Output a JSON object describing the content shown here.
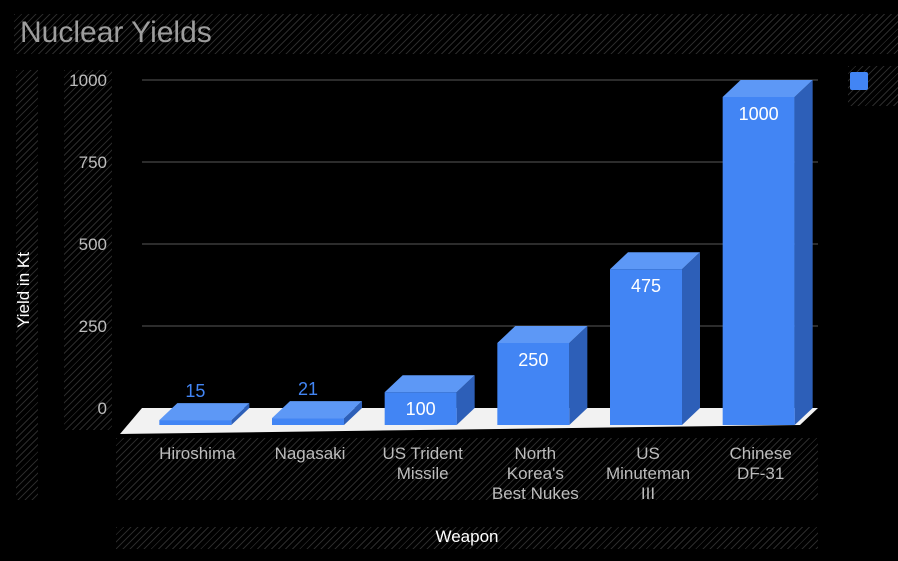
{
  "chart_data": {
    "type": "bar",
    "style": "3d-column",
    "title": "Nuclear Yields",
    "xlabel": "Weapon",
    "ylabel": "Yield in Kt",
    "categories": [
      [
        "Hiroshima"
      ],
      [
        "Nagasaki"
      ],
      [
        "US Trident",
        "Missile"
      ],
      [
        "North",
        "Korea's",
        "Best Nukes"
      ],
      [
        "US",
        "Minuteman",
        "III"
      ],
      [
        "Chinese",
        "DF-31"
      ]
    ],
    "values": [
      15,
      21,
      100,
      250,
      475,
      1000
    ],
    "data_labels": [
      "15",
      "21",
      "100",
      "250",
      "475",
      "1000"
    ],
    "ylim": [
      0,
      1000
    ],
    "yticks": [
      "0",
      "250",
      "500",
      "750",
      "1000"
    ],
    "grid": true,
    "legend": {
      "placement": "top-right",
      "entries": [
        ""
      ]
    },
    "colors": {
      "bar_front": "#4285f4",
      "bar_top": "#5d98f6",
      "bar_side": "#2d5fb8",
      "floor": "#f2f2f2",
      "grid": "#3a3a3a",
      "background": "#000000"
    }
  }
}
